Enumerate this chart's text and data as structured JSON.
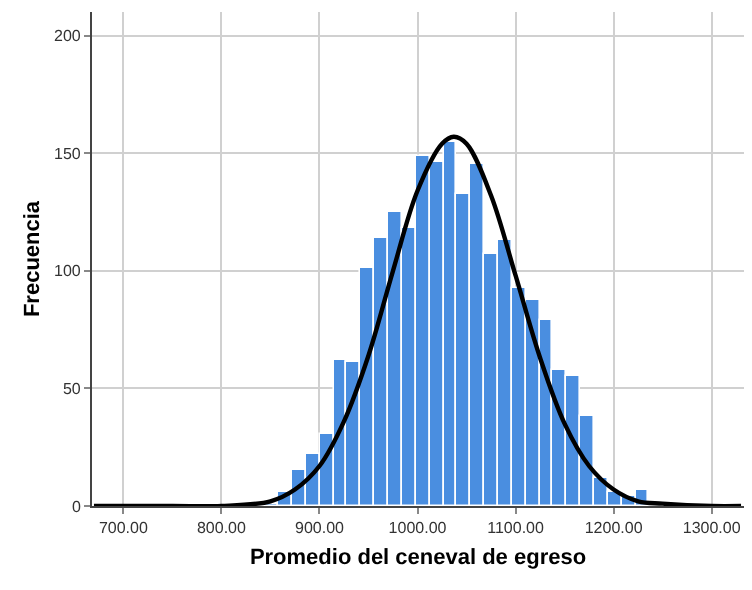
{
  "chart_data": {
    "type": "histogram",
    "xlabel": "Promedio del ceneval de egreso",
    "ylabel": "Frecuencia",
    "bins": [
      844,
      858,
      872,
      886,
      900,
      914,
      928,
      942,
      956,
      970,
      984,
      998,
      1012,
      1026,
      1040,
      1054,
      1068,
      1082,
      1096,
      1110,
      1124,
      1138,
      1152,
      1166,
      1180,
      1194,
      1208,
      1222,
      1236
    ],
    "values": [
      1,
      6,
      15,
      22,
      31,
      62,
      61,
      101,
      114,
      125,
      118,
      149,
      146,
      155,
      133,
      145,
      107,
      113,
      93,
      88,
      79,
      58,
      55,
      38,
      12,
      6,
      4,
      7
    ],
    "color": "#4a8ee0",
    "series": [
      {
        "type": "line",
        "color": "#000000",
        "x": [
          670,
          750,
          800,
          850,
          875,
          900,
          925,
          950,
          975,
          1000,
          1025,
          1037,
          1050,
          1075,
          1100,
          1125,
          1150,
          1175,
          1200,
          1225,
          1250,
          1300,
          1330
        ],
        "values": [
          0,
          0,
          0,
          2,
          7,
          17,
          36,
          64,
          100,
          134,
          154,
          157,
          154,
          132,
          98,
          63,
          35,
          17,
          7,
          2,
          1,
          0,
          0
        ]
      }
    ],
    "xlim": [
      668,
      1333
    ],
    "ylim": [
      0,
      210
    ],
    "xticks": [
      {
        "value": 700,
        "label": "700.00"
      },
      {
        "value": 800,
        "label": "800.00"
      },
      {
        "value": 900,
        "label": "900.00"
      },
      {
        "value": 1000,
        "label": "1000.00"
      },
      {
        "value": 1100,
        "label": "1100.00"
      },
      {
        "value": 1200,
        "label": "1200.00"
      },
      {
        "value": 1300,
        "label": "1300.00"
      }
    ],
    "yticks": [
      0,
      50,
      100,
      150,
      200
    ],
    "grid": true
  }
}
